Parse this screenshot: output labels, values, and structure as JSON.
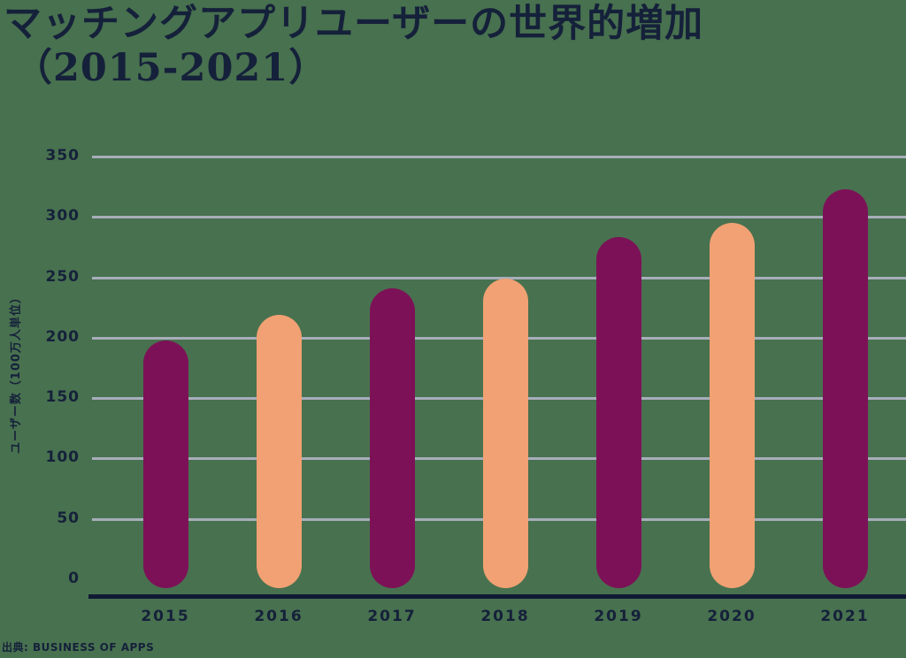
{
  "title": {
    "line1": "マッチングアプリユーザーの世界的増加",
    "line2": "（2015-2021）"
  },
  "source": "出典: BUSINESS OF APPS",
  "chart_data": {
    "type": "bar",
    "title": "マッチングアプリユーザーの世界的増加（2015-2021）",
    "categories": [
      "2015",
      "2016",
      "2017",
      "2018",
      "2019",
      "2020",
      "2021"
    ],
    "values": [
      198,
      219,
      241,
      249,
      283,
      295,
      323
    ],
    "xlabel": "",
    "ylabel": "ユーザー数（100万人単位）",
    "ylim": [
      0,
      350
    ],
    "yticks": [
      0,
      50,
      100,
      150,
      200,
      250,
      300,
      350
    ],
    "grid": true,
    "legend": false,
    "bar_style": "rounded-capsule",
    "bar_colors_alternating": [
      "#7D1157",
      "#F1A173"
    ]
  },
  "colors": {
    "background": "#48714F",
    "bar_primary": "#7D1157",
    "bar_secondary": "#F1A173",
    "text": "#15213A",
    "gridline": "#A7AEBA",
    "axis": "#101A33"
  }
}
